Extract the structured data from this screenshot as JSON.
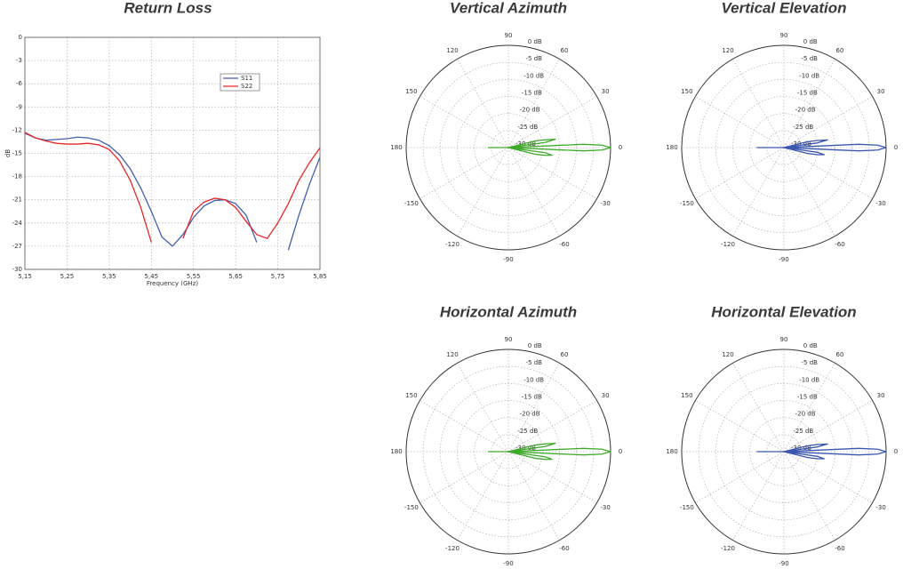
{
  "chart_data": [
    {
      "type": "line",
      "title": "Return Loss",
      "x_label": "Frequency (GHz)",
      "y_label": "dB",
      "x": [
        5.15,
        5.175,
        5.2,
        5.225,
        5.25,
        5.275,
        5.3,
        5.325,
        5.35,
        5.375,
        5.4,
        5.425,
        5.45,
        5.475,
        5.5,
        5.525,
        5.55,
        5.575,
        5.6,
        5.625,
        5.65,
        5.675,
        5.7,
        5.725,
        5.75,
        5.775,
        5.8,
        5.825,
        5.85
      ],
      "series": [
        {
          "name": "S11",
          "color": "#3f5fb0",
          "values": [
            -12.4,
            -13.0,
            -13.3,
            -13.2,
            -13.1,
            -12.9,
            -13.0,
            -13.3,
            -14.0,
            -15.2,
            -17.0,
            -19.5,
            -22.5,
            -25.8,
            -27.0,
            -25.5,
            -23.3,
            -21.8,
            -21.1,
            -21.0,
            -21.5,
            -23.0,
            -26.5,
            null,
            null,
            -27.5,
            -23.0,
            -19.0,
            -15.5
          ]
        },
        {
          "name": "S22",
          "color": "#e8262a",
          "values": [
            -12.3,
            -13.0,
            -13.4,
            -13.7,
            -13.8,
            -13.8,
            -13.7,
            -13.9,
            -14.5,
            -16.0,
            -18.5,
            -22.0,
            -26.5,
            null,
            null,
            -26.0,
            -22.5,
            -21.3,
            -20.8,
            -21.0,
            -22.0,
            -23.8,
            -25.5,
            -26.0,
            -24.0,
            -21.5,
            -18.5,
            -16.2,
            -14.3
          ]
        }
      ],
      "xlim": [
        5.15,
        5.85
      ],
      "xticks": [
        {
          "value": 5.15,
          "label": "5,15"
        },
        {
          "value": 5.25,
          "label": "5,25"
        },
        {
          "value": 5.35,
          "label": "5,35"
        },
        {
          "value": 5.45,
          "label": "5,45"
        },
        {
          "value": 5.55,
          "label": "5,55"
        },
        {
          "value": 5.65,
          "label": "5,65"
        },
        {
          "value": 5.75,
          "label": "5,75"
        },
        {
          "value": 5.85,
          "label": "5,85"
        }
      ],
      "ylim": [
        -30,
        0
      ],
      "yticks": [
        0,
        -3,
        -6,
        -9,
        -12,
        -15,
        -18,
        -21,
        -24,
        -27,
        -30
      ],
      "grid": true,
      "legend": "upper right"
    },
    {
      "type": "polar",
      "title": "Vertical Azimuth",
      "color": "#3faa2a",
      "theta": [
        -180,
        -175,
        -20,
        -14,
        -12,
        -10,
        -8,
        -6,
        -3.5,
        -2.5,
        -1.5,
        0,
        1.5,
        2.5,
        3.5,
        6,
        8,
        10,
        12,
        14,
        20,
        175,
        180
      ],
      "r": [
        -24,
        -30,
        -30,
        -22,
        -19,
        -17,
        -19,
        -30,
        -30,
        -8,
        -2.5,
        0,
        -2.5,
        -8,
        -30,
        -30,
        -19,
        -16,
        -19,
        -22,
        -30,
        -30,
        -24
      ],
      "rlim": [
        -30,
        0
      ],
      "rticks": [
        {
          "value": 0,
          "label": "0 dB"
        },
        {
          "value": -5,
          "label": "-5 dB"
        },
        {
          "value": -10,
          "label": "-10 dB"
        },
        {
          "value": -15,
          "label": "-15 dB"
        },
        {
          "value": -20,
          "label": "-20 dB"
        },
        {
          "value": -25,
          "label": "-25 dB"
        },
        {
          "value": -30,
          "label": "-30 dB"
        }
      ],
      "thetaticks": [
        0,
        30,
        60,
        90,
        120,
        150,
        180,
        -150,
        -120,
        -90,
        -60,
        -30
      ]
    },
    {
      "type": "polar",
      "title": "Vertical Elevation",
      "color": "#3a56b0",
      "theta": [
        -180,
        -175,
        -20,
        -14,
        -12,
        -10,
        -8,
        -6,
        -3.5,
        -2.5,
        -1.5,
        0,
        1.5,
        2.5,
        3.5,
        6,
        8,
        10,
        12,
        14,
        20,
        175,
        180
      ],
      "r": [
        -22,
        -30,
        -30,
        -23,
        -20,
        -18,
        -20,
        -30,
        -30,
        -8,
        -2.5,
        0,
        -2.5,
        -8,
        -30,
        -30,
        -20,
        -17,
        -20,
        -23,
        -30,
        -30,
        -22
      ],
      "rlim": [
        -30,
        0
      ],
      "rticks": [
        {
          "value": 0,
          "label": "0 dB"
        },
        {
          "value": -5,
          "label": "-5 dB"
        },
        {
          "value": -10,
          "label": "-10 dB"
        },
        {
          "value": -15,
          "label": "-15 dB"
        },
        {
          "value": -20,
          "label": "-20 dB"
        },
        {
          "value": -25,
          "label": "-25 dB"
        },
        {
          "value": -30,
          "label": "-30 dB"
        }
      ],
      "thetaticks": [
        0,
        30,
        60,
        90,
        120,
        150,
        180,
        -150,
        -120,
        -90,
        -60,
        -30
      ]
    },
    {
      "type": "polar",
      "title": "Horizontal Azimuth",
      "color": "#3faa2a",
      "theta": [
        -180,
        -175,
        -20,
        -14,
        -12,
        -10,
        -8,
        -6,
        -3.5,
        -2.5,
        -1.5,
        0,
        1.5,
        2.5,
        3.5,
        6,
        8,
        10,
        12,
        14,
        20,
        175,
        180
      ],
      "r": [
        -24,
        -30,
        -30,
        -22,
        -19,
        -17,
        -19,
        -30,
        -30,
        -8,
        -2.5,
        0,
        -2.5,
        -8,
        -30,
        -30,
        -19,
        -16,
        -19,
        -22,
        -30,
        -30,
        -24
      ],
      "rlim": [
        -30,
        0
      ],
      "rticks": [
        {
          "value": 0,
          "label": "0 dB"
        },
        {
          "value": -5,
          "label": "-5 dB"
        },
        {
          "value": -10,
          "label": "-10 dB"
        },
        {
          "value": -15,
          "label": "-15 dB"
        },
        {
          "value": -20,
          "label": "-20 dB"
        },
        {
          "value": -25,
          "label": "-25 dB"
        },
        {
          "value": -30,
          "label": "-30 dB"
        }
      ],
      "thetaticks": [
        0,
        30,
        60,
        90,
        120,
        150,
        180,
        -150,
        -120,
        -90,
        -60,
        -30
      ]
    },
    {
      "type": "polar",
      "title": "Horizontal Elevation",
      "color": "#3a56b0",
      "theta": [
        -180,
        -175,
        -20,
        -14,
        -12,
        -10,
        -8,
        -6,
        -3.5,
        -2.5,
        -1.5,
        0,
        1.5,
        2.5,
        3.5,
        6,
        8,
        10,
        12,
        14,
        20,
        175,
        180
      ],
      "r": [
        -22,
        -30,
        -30,
        -23,
        -20,
        -18,
        -20,
        -30,
        -30,
        -8,
        -2.5,
        0,
        -2.5,
        -8,
        -30,
        -30,
        -20,
        -17,
        -20,
        -23,
        -30,
        -30,
        -22
      ],
      "rlim": [
        -30,
        0
      ],
      "rticks": [
        {
          "value": 0,
          "label": "0 dB"
        },
        {
          "value": -5,
          "label": "-5 dB"
        },
        {
          "value": -10,
          "label": "-10 dB"
        },
        {
          "value": -15,
          "label": "-15 dB"
        },
        {
          "value": -20,
          "label": "-20 dB"
        },
        {
          "value": -25,
          "label": "-25 dB"
        },
        {
          "value": -30,
          "label": "-30 dB"
        }
      ],
      "thetaticks": [
        0,
        30,
        60,
        90,
        120,
        150,
        180,
        -150,
        -120,
        -90,
        -60,
        -30
      ]
    }
  ]
}
